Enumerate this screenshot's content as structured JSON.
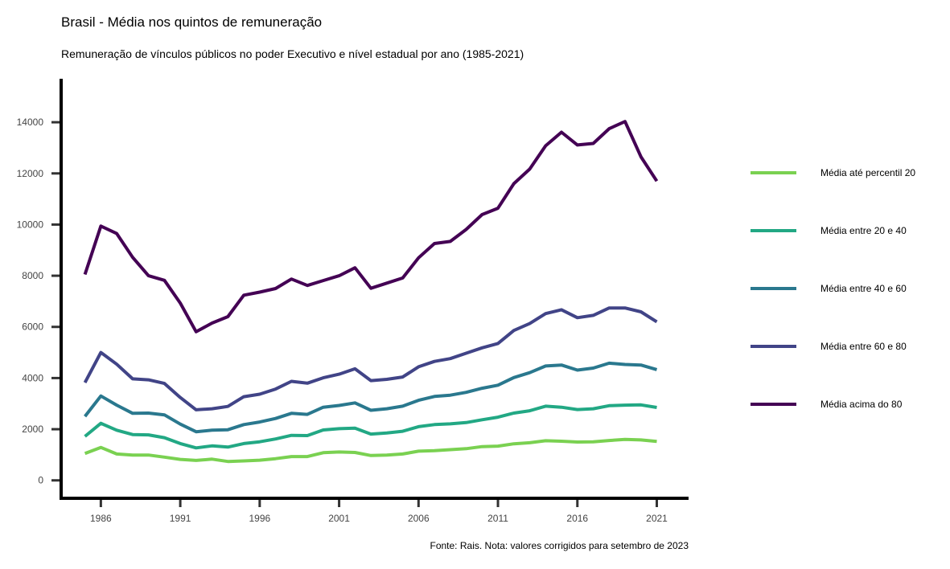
{
  "chart_data": {
    "type": "line",
    "title": "Brasil - Média nos quintos de remuneração",
    "subtitle": "Remuneração de vínculos públicos no poder Executivo e nível estadual por ano (1985-2021)",
    "caption": "Fonte: Rais. Nota: valores corrigidos para setembro de 2023",
    "xlabel": "",
    "ylabel": "",
    "xlim": [
      1983.5,
      2023
    ],
    "ylim": [
      -700,
      15700
    ],
    "x_ticks": [
      1986,
      1991,
      1996,
      2001,
      2006,
      2011,
      2016,
      2021
    ],
    "y_ticks": [
      0,
      2000,
      4000,
      6000,
      8000,
      10000,
      12000,
      14000
    ],
    "grid": false,
    "legend_position": "right",
    "x": [
      1985,
      1986,
      1987,
      1988,
      1989,
      1990,
      1991,
      1992,
      1993,
      1994,
      1995,
      1996,
      1997,
      1998,
      1999,
      2000,
      2001,
      2002,
      2003,
      2004,
      2005,
      2006,
      2007,
      2008,
      2009,
      2010,
      2011,
      2012,
      2013,
      2014,
      2015,
      2016,
      2017,
      2018,
      2019,
      2020,
      2021
    ],
    "series": [
      {
        "name": "Média até percentil 20",
        "color": "#7ad151",
        "values": [
          1050,
          1290,
          1030,
          990,
          990,
          910,
          820,
          780,
          830,
          740,
          760,
          790,
          850,
          930,
          930,
          1080,
          1110,
          1090,
          970,
          990,
          1030,
          1140,
          1160,
          1200,
          1240,
          1320,
          1340,
          1430,
          1470,
          1550,
          1530,
          1500,
          1510,
          1560,
          1600,
          1580,
          1520
        ]
      },
      {
        "name": "Média entre 20 e 40",
        "color": "#22a884",
        "values": [
          1720,
          2230,
          1960,
          1790,
          1780,
          1670,
          1440,
          1270,
          1350,
          1300,
          1440,
          1510,
          1620,
          1760,
          1750,
          1970,
          2020,
          2040,
          1810,
          1850,
          1920,
          2100,
          2180,
          2210,
          2260,
          2370,
          2470,
          2630,
          2720,
          2900,
          2860,
          2770,
          2800,
          2920,
          2940,
          2950,
          2850
        ]
      },
      {
        "name": "Média entre 40 e 60",
        "color": "#2a788e",
        "values": [
          2500,
          3300,
          2940,
          2620,
          2630,
          2560,
          2200,
          1900,
          1960,
          1980,
          2180,
          2280,
          2420,
          2620,
          2580,
          2860,
          2930,
          3030,
          2740,
          2800,
          2900,
          3130,
          3280,
          3330,
          3440,
          3600,
          3720,
          4020,
          4210,
          4470,
          4510,
          4310,
          4390,
          4580,
          4530,
          4510,
          4330
        ]
      },
      {
        "name": "Média entre 60 e 80",
        "color": "#414487",
        "values": [
          3820,
          5000,
          4540,
          3970,
          3930,
          3790,
          3240,
          2760,
          2800,
          2890,
          3270,
          3370,
          3570,
          3870,
          3800,
          4010,
          4150,
          4360,
          3900,
          3950,
          4040,
          4440,
          4650,
          4760,
          4970,
          5180,
          5350,
          5860,
          6130,
          6520,
          6670,
          6360,
          6450,
          6740,
          6740,
          6590,
          6200
        ]
      },
      {
        "name": "Média acima do 80",
        "color": "#440154",
        "values": [
          8050,
          9940,
          9650,
          8720,
          8000,
          7820,
          6930,
          5810,
          6150,
          6400,
          7240,
          7360,
          7500,
          7870,
          7620,
          7810,
          8000,
          8310,
          7510,
          7710,
          7910,
          8700,
          9260,
          9340,
          9810,
          10390,
          10640,
          11600,
          12170,
          13080,
          13610,
          13110,
          13170,
          13750,
          14030,
          12650,
          11700
        ]
      }
    ]
  }
}
